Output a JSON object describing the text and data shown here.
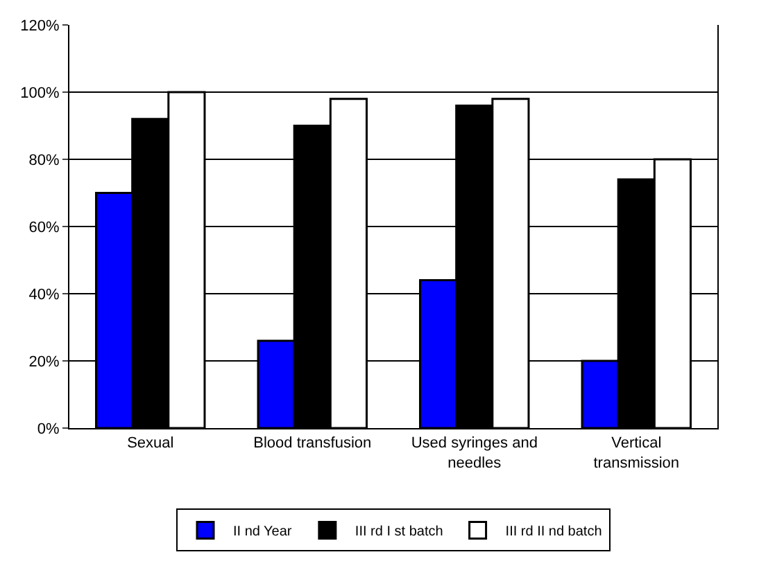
{
  "chart_data": {
    "type": "bar",
    "categories": [
      "Sexual",
      "Blood transfusion",
      "Used syringes and needles",
      "Vertical transmission"
    ],
    "series": [
      {
        "name": "II nd Year",
        "color": "#0000ff",
        "values": [
          70,
          26,
          44,
          20
        ]
      },
      {
        "name": "III rd I st batch",
        "color": "#000000",
        "values": [
          92,
          90,
          96,
          74
        ]
      },
      {
        "name": "III rd II nd batch",
        "color": "#ffffff",
        "values": [
          100,
          98,
          98,
          80
        ]
      }
    ],
    "ylim": [
      0,
      120
    ],
    "yticks": [
      {
        "value": 0,
        "label": "0%"
      },
      {
        "value": 20,
        "label": "20%"
      },
      {
        "value": 40,
        "label": "40%"
      },
      {
        "value": 60,
        "label": "60%"
      },
      {
        "value": 80,
        "label": "80%"
      },
      {
        "value": 100,
        "label": "100%"
      },
      {
        "value": 120,
        "label": "120%"
      }
    ],
    "grid": "y",
    "legend": "bottom"
  }
}
